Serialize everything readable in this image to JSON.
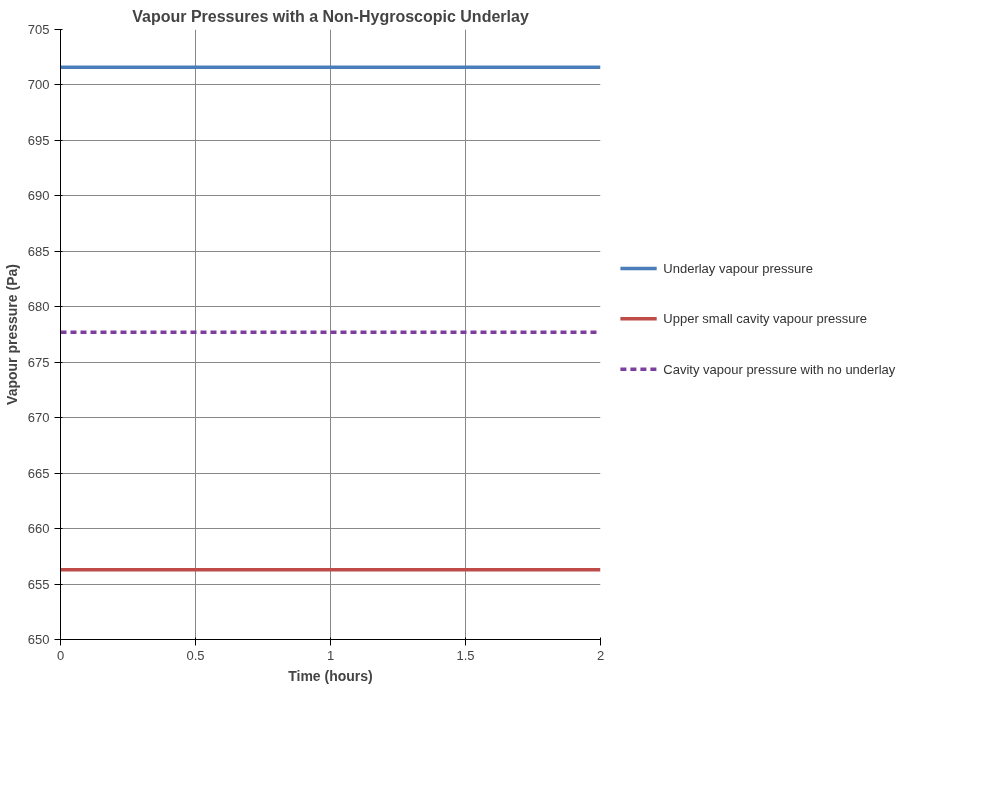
{
  "chart_data": {
    "type": "line",
    "title": "Vapour Pressures with a Non-Hygroscopic Underlay",
    "xlabel": "Time (hours)",
    "ylabel": "Vapour pressure (Pa)",
    "x": [
      0,
      2
    ],
    "series": [
      {
        "name": "Underlay vapour pressure",
        "color": "#4a7ebb",
        "values": [
          701.6,
          701.6
        ]
      },
      {
        "name": "Upper small cavity vapour pressure",
        "color": "#be4b48",
        "values": [
          656.3,
          656.3
        ]
      },
      {
        "name": "Cavity vapour pressure with no underlay",
        "color": "#7d3f9e",
        "values": [
          677.7,
          677.7
        ],
        "line_style": "dashed"
      }
    ],
    "xlim": [
      0,
      2
    ],
    "xticks": [
      0,
      0.5,
      1,
      1.5,
      2
    ],
    "ylim": [
      650,
      705
    ],
    "yticks": [
      650,
      655,
      660,
      665,
      670,
      675,
      680,
      685,
      690,
      695,
      700,
      705
    ],
    "grid": true,
    "legend": "right",
    "marker": "none"
  }
}
